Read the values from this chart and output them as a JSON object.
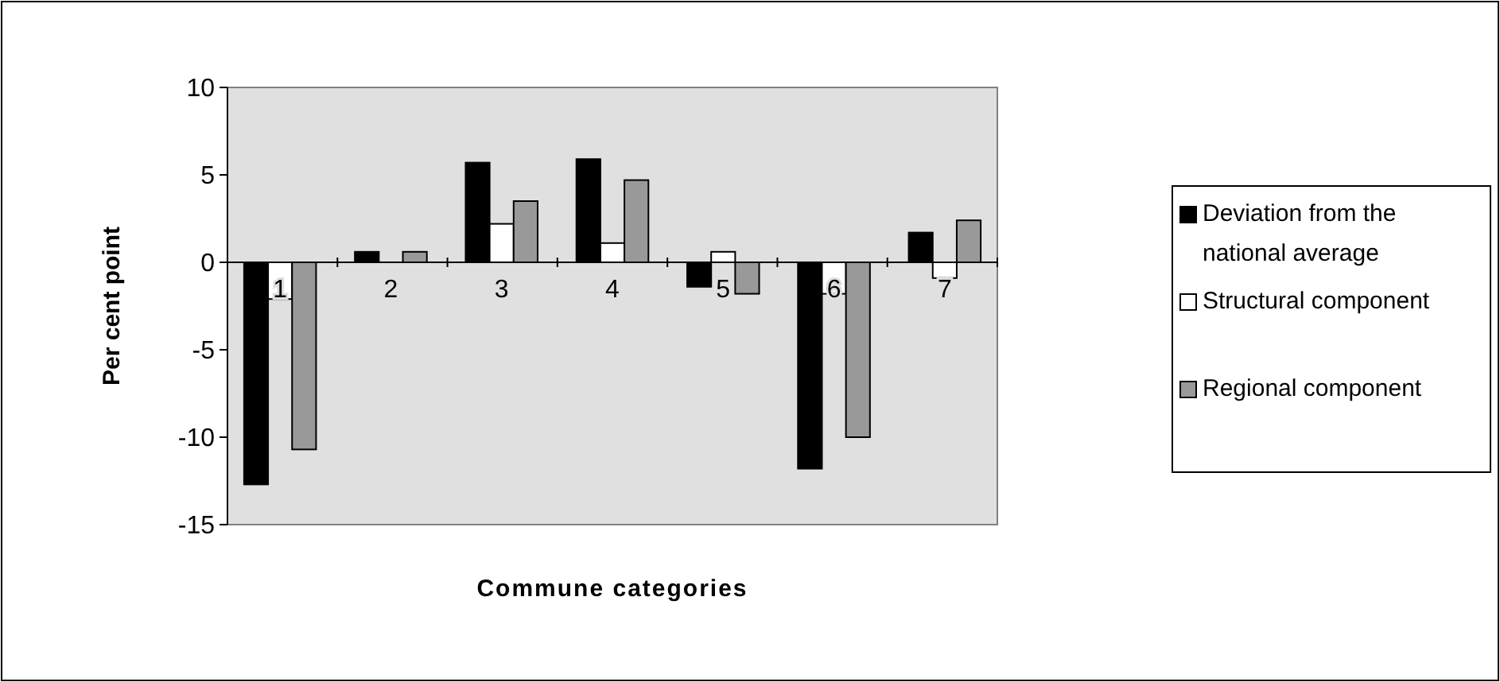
{
  "chart_data": {
    "type": "bar",
    "xlabel": "Commune categories",
    "ylabel": "Per cent point",
    "categories": [
      "1",
      "2",
      "3",
      "4",
      "5",
      "6",
      "7"
    ],
    "series": [
      {
        "name": "Deviation from the national average",
        "color": "#000000",
        "values": [
          -12.7,
          0.6,
          5.7,
          5.9,
          -1.4,
          -11.8,
          1.7
        ]
      },
      {
        "name": "Structural component",
        "color": "#ffffff",
        "values": [
          -2.1,
          0,
          2.2,
          1.1,
          0.6,
          -1.8,
          -0.9
        ]
      },
      {
        "name": "Regional component",
        "color": "#999999",
        "values": [
          -10.7,
          0.6,
          3.5,
          4.7,
          -1.8,
          -10.0,
          2.4
        ]
      }
    ],
    "ylim": [
      -15,
      10
    ],
    "yticks": [
      -15,
      -10,
      -5,
      0,
      5,
      10
    ],
    "grid": false,
    "legend": "right"
  }
}
